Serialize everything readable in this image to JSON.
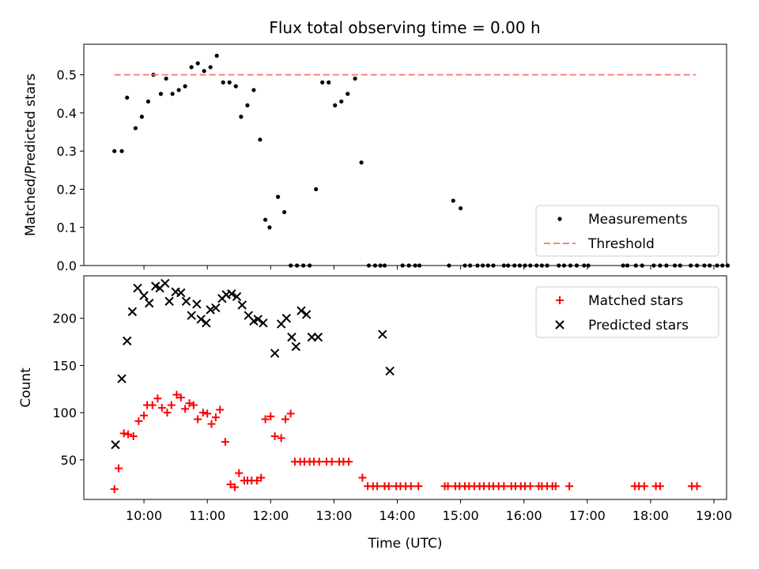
{
  "title": "Flux total observing time = 0.00 h",
  "chart_data": [
    {
      "type": "scatter",
      "ylabel": "Matched/Predicted stars",
      "xlim_hours": [
        9.05,
        19.2
      ],
      "ylim": [
        0,
        0.58
      ],
      "yticks": [
        0.0,
        0.1,
        0.2,
        0.3,
        0.4,
        0.5
      ],
      "ytick_labels": [
        "0.0",
        "0.1",
        "0.2",
        "0.3",
        "0.4",
        "0.5"
      ],
      "legend_position": "lower-right",
      "series": [
        {
          "name": "Measurements",
          "marker": "dot",
          "color": "#000000",
          "x": [
            "09:32",
            "09:39",
            "09:44",
            "09:52",
            "09:58",
            "10:04",
            "10:09",
            "10:16",
            "10:21",
            "10:27",
            "10:33",
            "10:39",
            "10:45",
            "10:51",
            "10:57",
            "11:03",
            "11:09",
            "11:15",
            "11:21",
            "11:27",
            "11:32",
            "11:38",
            "11:44",
            "11:50",
            "11:55",
            "11:59",
            "12:07",
            "12:13",
            "12:19",
            "12:25",
            "12:31",
            "12:37",
            "12:43",
            "12:49",
            "12:55",
            "13:01",
            "13:07",
            "13:13",
            "13:20",
            "13:26",
            "13:33",
            "13:39",
            "13:44",
            "13:48",
            "14:05",
            "14:11",
            "14:17",
            "14:21",
            "14:49",
            "14:53",
            "15:00",
            "15:04",
            "15:09",
            "15:16",
            "15:21",
            "15:26",
            "15:31",
            "15:41",
            "15:45",
            "15:51",
            "15:56",
            "16:01",
            "16:06",
            "16:12",
            "16:17",
            "16:22",
            "16:33",
            "16:38",
            "16:44",
            "16:50",
            "16:57",
            "17:01",
            "17:34",
            "17:38",
            "17:46",
            "17:52",
            "18:03",
            "18:09",
            "18:15",
            "18:23",
            "18:28",
            "18:38",
            "18:44",
            "18:51",
            "18:56",
            "19:03",
            "19:08",
            "19:13"
          ],
          "y": [
            0.3,
            0.3,
            0.44,
            0.36,
            0.39,
            0.43,
            0.5,
            0.45,
            0.49,
            0.45,
            0.46,
            0.47,
            0.52,
            0.53,
            0.51,
            0.52,
            0.55,
            0.48,
            0.48,
            0.47,
            0.39,
            0.42,
            0.46,
            0.33,
            0.12,
            0.1,
            0.18,
            0.14,
            0.0,
            0.0,
            0.0,
            0.0,
            0.2,
            0.48,
            0.48,
            0.42,
            0.43,
            0.45,
            0.49,
            0.27,
            0.0,
            0.0,
            0.0,
            0.0,
            0.0,
            0.0,
            0.0,
            0.0,
            0.0,
            0.17,
            0.15,
            0.0,
            0.0,
            0.0,
            0.0,
            0.0,
            0.0,
            0.0,
            0.0,
            0.0,
            0.0,
            0.0,
            0.0,
            0.0,
            0.0,
            0.0,
            0.0,
            0.0,
            0.0,
            0.0,
            0.0,
            0.0,
            0.0,
            0.0,
            0.0,
            0.0,
            0.0,
            0.0,
            0.0,
            0.0,
            0.0,
            0.0,
            0.0,
            0.0,
            0.0,
            0.0,
            0.0,
            0.0
          ]
        },
        {
          "name": "Threshold",
          "marker": "dashed-line",
          "color": "#ff7f7f",
          "x": [
            "09:32",
            "18:43"
          ],
          "y": [
            0.5,
            0.5
          ]
        }
      ]
    },
    {
      "type": "scatter",
      "ylabel": "Count",
      "xlabel": "Time (UTC)",
      "xlim_hours": [
        9.05,
        19.2
      ],
      "ylim": [
        8,
        245
      ],
      "yticks": [
        50,
        100,
        150,
        200
      ],
      "ytick_labels": [
        "50",
        "100",
        "150",
        "200"
      ],
      "xticks": [
        "10:00",
        "11:00",
        "12:00",
        "13:00",
        "14:00",
        "15:00",
        "16:00",
        "17:00",
        "18:00",
        "19:00"
      ],
      "legend_position": "upper-right",
      "series": [
        {
          "name": "Matched stars",
          "marker": "plus",
          "color": "#ff0000",
          "x": [
            "09:32",
            "09:36",
            "09:41",
            "09:45",
            "09:50",
            "09:55",
            "10:00",
            "10:03",
            "10:08",
            "10:13",
            "10:17",
            "10:22",
            "10:26",
            "10:31",
            "10:35",
            "10:39",
            "10:43",
            "10:47",
            "10:51",
            "10:56",
            "11:00",
            "11:04",
            "11:08",
            "11:12",
            "11:17",
            "11:22",
            "11:26",
            "11:30",
            "11:35",
            "11:38",
            "11:42",
            "11:47",
            "11:51",
            "11:55",
            "12:00",
            "12:04",
            "12:10",
            "12:14",
            "12:19",
            "12:23",
            "12:28",
            "12:32",
            "12:37",
            "12:41",
            "12:46",
            "12:53",
            "12:58",
            "13:05",
            "13:09",
            "13:14",
            "13:27",
            "13:32",
            "13:37",
            "13:41",
            "13:48",
            "13:52",
            "13:59",
            "14:03",
            "14:08",
            "14:13",
            "14:20",
            "14:45",
            "14:48",
            "14:55",
            "14:59",
            "15:04",
            "15:08",
            "15:13",
            "15:18",
            "15:22",
            "15:27",
            "15:31",
            "15:36",
            "15:41",
            "15:48",
            "15:52",
            "15:57",
            "16:01",
            "16:06",
            "16:14",
            "16:17",
            "16:22",
            "16:27",
            "16:30",
            "16:43",
            "17:45",
            "17:49",
            "17:54",
            "18:05",
            "18:09",
            "18:39",
            "18:44"
          ],
          "y": [
            19,
            41,
            78,
            77,
            75,
            91,
            97,
            108,
            108,
            115,
            105,
            100,
            108,
            119,
            116,
            104,
            110,
            108,
            93,
            100,
            99,
            88,
            95,
            103,
            69,
            24,
            21,
            36,
            28,
            28,
            28,
            28,
            31,
            93,
            96,
            75,
            73,
            93,
            99,
            48,
            48,
            48,
            48,
            48,
            48,
            48,
            48,
            48,
            48,
            48,
            31,
            22,
            22,
            22,
            22,
            22,
            22,
            22,
            22,
            22,
            22,
            22,
            22,
            22,
            22,
            22,
            22,
            22,
            22,
            22,
            22,
            22,
            22,
            22,
            22,
            22,
            22,
            22,
            22,
            22,
            22,
            22,
            22,
            22,
            22,
            22,
            22,
            22,
            22,
            22,
            22,
            22
          ]
        },
        {
          "name": "Predicted stars",
          "marker": "cross",
          "color": "#000000",
          "x": [
            "09:33",
            "09:39",
            "09:44",
            "09:49",
            "09:54",
            "10:00",
            "10:05",
            "10:11",
            "10:15",
            "10:20",
            "10:24",
            "10:30",
            "10:35",
            "10:40",
            "10:45",
            "10:50",
            "10:54",
            "10:59",
            "11:03",
            "11:08",
            "11:14",
            "11:18",
            "11:23",
            "11:28",
            "11:33",
            "11:39",
            "11:44",
            "11:48",
            "11:53",
            "12:04",
            "12:10",
            "12:15",
            "12:20",
            "12:24",
            "12:29",
            "12:34",
            "12:39",
            "12:45",
            "13:46",
            "13:53"
          ],
          "y": [
            66,
            136,
            176,
            207,
            232,
            224,
            216,
            234,
            232,
            237,
            218,
            228,
            227,
            218,
            203,
            215,
            199,
            195,
            209,
            211,
            221,
            225,
            226,
            223,
            214,
            203,
            197,
            199,
            195,
            163,
            194,
            200,
            180,
            170,
            208,
            204,
            180,
            180,
            183,
            144
          ]
        }
      ]
    }
  ]
}
